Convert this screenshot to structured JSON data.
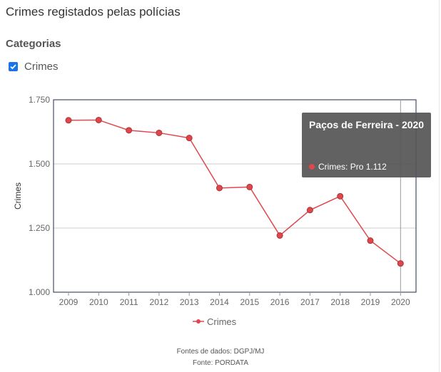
{
  "header": {
    "title": "Crimes registados pelas polícias"
  },
  "categories": {
    "title": "Categorias",
    "items": [
      {
        "label": "Crimes",
        "checked": true
      }
    ]
  },
  "colors": {
    "series": "#e0474c",
    "checkbox": "#1a73e8",
    "tooltip_bg": "#555555"
  },
  "tooltip": {
    "title": "Paços de Ferreira - 2020",
    "series_label": "Crimes:",
    "value_text": "Pro 1.112"
  },
  "footer": {
    "data_sources": "Fontes de dados: DGPJ/MJ",
    "source": "Fonte: PORDATA"
  },
  "chart_data": {
    "type": "line",
    "title": "",
    "xlabel": "",
    "ylabel": "Crimes",
    "x": [
      "2009",
      "2010",
      "2011",
      "2012",
      "2013",
      "2014",
      "2015",
      "2016",
      "2017",
      "2018",
      "2019",
      "2020"
    ],
    "series": [
      {
        "name": "Crimes",
        "values": [
          1670,
          1671,
          1631,
          1621,
          1601,
          1406,
          1410,
          1221,
          1320,
          1374,
          1201,
          1112
        ]
      }
    ],
    "ylim": [
      1000,
      1750
    ],
    "yticks": [
      1000,
      1250,
      1500,
      1750
    ],
    "ytick_labels": [
      "1.000",
      "1.250",
      "1.500",
      "1.750"
    ],
    "grid": true,
    "legend": "bottom",
    "highlighted_point": "2020"
  }
}
